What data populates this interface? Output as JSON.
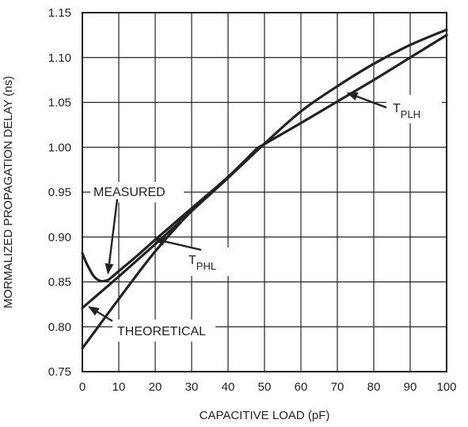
{
  "chart_data": {
    "type": "line",
    "xlabel": "CAPACITIVE LOAD (pF)",
    "ylabel": "MORMALIZED PROPAGATION DELAY (ns)",
    "xlim": [
      0,
      100
    ],
    "ylim": [
      0.75,
      1.15
    ],
    "xticks": [
      0,
      10,
      20,
      30,
      40,
      50,
      60,
      70,
      80,
      90,
      100
    ],
    "yticks": [
      0.75,
      0.8,
      0.85,
      0.9,
      0.95,
      1.0,
      1.05,
      1.1,
      1.15
    ],
    "ytick_labels": [
      "0.75",
      "0.80",
      "0.85",
      "0.90",
      "0.95",
      "1.00",
      "1.05",
      "1.10",
      "1.15"
    ],
    "grid": true,
    "series": [
      {
        "key": "measured",
        "x": [
          0,
          1,
          2,
          3,
          4,
          5,
          6,
          7,
          8,
          10,
          15,
          20,
          30,
          40,
          48
        ],
        "y": [
          0.882,
          0.872,
          0.864,
          0.857,
          0.853,
          0.851,
          0.851,
          0.852,
          0.855,
          0.862,
          0.879,
          0.897,
          0.932,
          0.967,
          0.999
        ]
      },
      {
        "key": "theoretical",
        "x": [
          0,
          10,
          20,
          30,
          40,
          48
        ],
        "y": [
          0.821,
          0.856,
          0.892,
          0.929,
          0.966,
          0.998
        ]
      },
      {
        "key": "tphl",
        "x": [
          0,
          10,
          20,
          30,
          40,
          50,
          60,
          70,
          80,
          90,
          100
        ],
        "y": [
          0.776,
          0.831,
          0.884,
          0.929,
          0.966,
          1.004,
          1.04,
          1.068,
          1.093,
          1.114,
          1.131
        ]
      },
      {
        "key": "tplh",
        "x": [
          48,
          60,
          70,
          80,
          90,
          100
        ],
        "y": [
          0.999,
          1.027,
          1.051,
          1.075,
          1.1,
          1.125
        ]
      }
    ],
    "annotations": [
      {
        "key": "measured",
        "text": "MEASURED",
        "sub": "",
        "point": [
          7,
          0.858
        ]
      },
      {
        "key": "theoretical",
        "text": "THEORETICAL",
        "sub": "",
        "point": [
          1.5,
          0.823
        ]
      },
      {
        "key": "tphl",
        "text": "T",
        "sub": "PHL",
        "point": [
          19.5,
          0.898
        ]
      },
      {
        "key": "tplh",
        "text": "T",
        "sub": "PLH",
        "point": [
          72.5,
          1.061
        ]
      }
    ]
  }
}
